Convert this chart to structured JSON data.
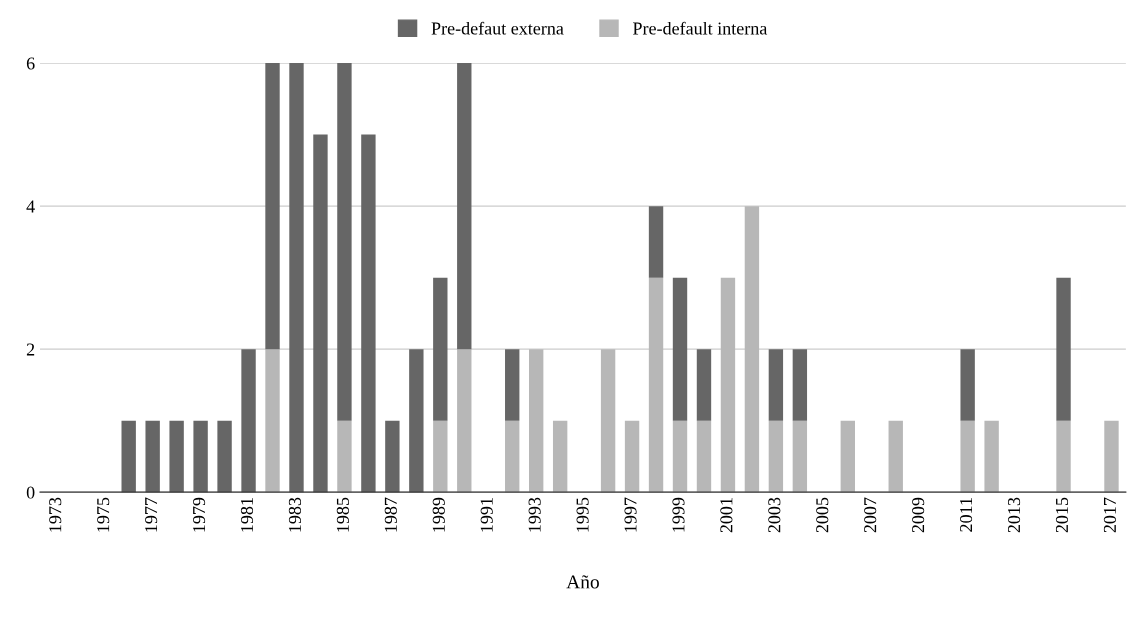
{
  "chart_data": {
    "type": "bar",
    "stacked": true,
    "xlabel": "Año",
    "categories": [
      "1973",
      null,
      "1975",
      null,
      "1977",
      null,
      "1979",
      null,
      "1981",
      null,
      "1983",
      null,
      "1985",
      null,
      "1987",
      null,
      "1989",
      null,
      "1991",
      null,
      "1993",
      null,
      "1995",
      null,
      "1997",
      null,
      "1999",
      null,
      "2001",
      null,
      "2003",
      null,
      "2005",
      null,
      "2007",
      null,
      "2009",
      null,
      "2011",
      null,
      "2013",
      null,
      "2015",
      null,
      "2017"
    ],
    "series": [
      {
        "name": "Pre-default interna",
        "color": "#b7b7b7",
        "values": [
          0,
          0,
          0,
          0,
          0,
          0,
          0,
          0,
          0,
          2,
          0,
          0,
          1,
          0,
          0,
          0,
          1,
          2,
          0,
          1,
          2,
          1,
          0,
          2,
          1,
          3,
          1,
          1,
          3,
          4,
          1,
          1,
          0,
          1,
          0,
          1,
          0,
          0,
          1,
          1,
          0,
          0,
          1,
          0,
          1
        ]
      },
      {
        "name": "Pre-defaut externa",
        "color": "#666666",
        "values": [
          0,
          0,
          0,
          1,
          1,
          1,
          1,
          1,
          2,
          4,
          6,
          5,
          5,
          5,
          1,
          2,
          2,
          4,
          0,
          1,
          0,
          0,
          0,
          0,
          0,
          1,
          2,
          1,
          0,
          0,
          1,
          1,
          0,
          0,
          0,
          0,
          0,
          0,
          1,
          0,
          0,
          0,
          2,
          0,
          0
        ]
      }
    ],
    "ylim": [
      0,
      6
    ],
    "yticks": [
      0,
      2,
      4,
      6
    ],
    "grid": "y",
    "legend": "top"
  }
}
